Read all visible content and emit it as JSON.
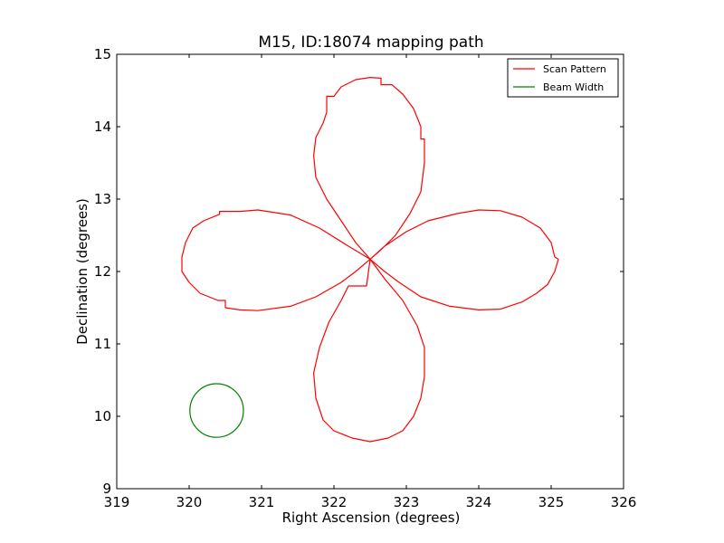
{
  "chart_data": {
    "type": "line",
    "title": "M15, ID:18074 mapping path",
    "xlabel": "Right Ascension (degrees)",
    "ylabel": "Declination (degrees)",
    "xlim": [
      319,
      326
    ],
    "ylim": [
      9,
      15
    ],
    "xticks": [
      "319",
      "320",
      "321",
      "322",
      "323",
      "324",
      "325",
      "326"
    ],
    "yticks": [
      "9",
      "10",
      "11",
      "12",
      "13",
      "14",
      "15"
    ],
    "grid": false,
    "legend_position": "top-right",
    "series": [
      {
        "name": "Scan Pattern",
        "color": "#ff0000",
        "points": [
          [
            322.5,
            12.17
          ],
          [
            322.7,
            12.35
          ],
          [
            323.0,
            12.55
          ],
          [
            323.3,
            12.7
          ],
          [
            323.7,
            12.8
          ],
          [
            324.0,
            12.85
          ],
          [
            324.3,
            12.84
          ],
          [
            324.6,
            12.75
          ],
          [
            324.85,
            12.6
          ],
          [
            325.0,
            12.4
          ],
          [
            325.05,
            12.2
          ],
          [
            325.1,
            12.17
          ],
          [
            325.05,
            12.0
          ],
          [
            324.95,
            11.82
          ],
          [
            324.8,
            11.7
          ],
          [
            324.6,
            11.58
          ],
          [
            324.3,
            11.48
          ],
          [
            324.0,
            11.47
          ],
          [
            323.6,
            11.52
          ],
          [
            323.2,
            11.65
          ],
          [
            322.9,
            11.85
          ],
          [
            322.7,
            12.0
          ],
          [
            322.5,
            12.17
          ],
          [
            322.7,
            11.9
          ],
          [
            322.95,
            11.6
          ],
          [
            323.15,
            11.25
          ],
          [
            323.25,
            10.95
          ],
          [
            323.25,
            10.55
          ],
          [
            323.2,
            10.25
          ],
          [
            323.1,
            10.0
          ],
          [
            322.95,
            9.8
          ],
          [
            322.75,
            9.7
          ],
          [
            322.5,
            9.65
          ],
          [
            322.25,
            9.7
          ],
          [
            322.0,
            9.8
          ],
          [
            321.85,
            9.95
          ],
          [
            321.75,
            10.25
          ],
          [
            321.72,
            10.6
          ],
          [
            321.8,
            10.95
          ],
          [
            321.93,
            11.3
          ],
          [
            322.1,
            11.6
          ],
          [
            322.2,
            11.8
          ],
          [
            322.45,
            11.8
          ],
          [
            322.5,
            12.17
          ],
          [
            322.2,
            12.35
          ],
          [
            321.8,
            12.6
          ],
          [
            321.4,
            12.78
          ],
          [
            320.95,
            12.85
          ],
          [
            320.7,
            12.83
          ],
          [
            320.42,
            12.83
          ],
          [
            320.42,
            12.79
          ],
          [
            320.2,
            12.7
          ],
          [
            320.05,
            12.6
          ],
          [
            319.95,
            12.4
          ],
          [
            319.9,
            12.2
          ],
          [
            319.9,
            12.0
          ],
          [
            320.0,
            11.85
          ],
          [
            320.15,
            11.7
          ],
          [
            320.4,
            11.6
          ],
          [
            320.5,
            11.6
          ],
          [
            320.5,
            11.5
          ],
          [
            320.7,
            11.47
          ],
          [
            320.95,
            11.46
          ],
          [
            321.4,
            11.52
          ],
          [
            321.75,
            11.65
          ],
          [
            322.1,
            11.85
          ],
          [
            322.3,
            12.0
          ],
          [
            322.5,
            12.17
          ],
          [
            322.3,
            12.4
          ],
          [
            322.1,
            12.7
          ],
          [
            321.9,
            13.0
          ],
          [
            321.75,
            13.3
          ],
          [
            321.72,
            13.6
          ],
          [
            321.75,
            13.85
          ],
          [
            321.85,
            14.05
          ],
          [
            321.9,
            14.2
          ],
          [
            321.9,
            14.42
          ],
          [
            322.0,
            14.42
          ],
          [
            322.1,
            14.55
          ],
          [
            322.3,
            14.65
          ],
          [
            322.5,
            14.68
          ],
          [
            322.65,
            14.67
          ],
          [
            322.65,
            14.58
          ],
          [
            322.8,
            14.58
          ],
          [
            322.95,
            14.45
          ],
          [
            323.1,
            14.25
          ],
          [
            323.2,
            14.0
          ],
          [
            323.2,
            13.83
          ],
          [
            323.25,
            13.83
          ],
          [
            323.25,
            13.5
          ],
          [
            323.2,
            13.1
          ],
          [
            323.05,
            12.8
          ],
          [
            322.85,
            12.5
          ],
          [
            322.65,
            12.3
          ],
          [
            322.5,
            12.17
          ]
        ]
      },
      {
        "name": "Beam Width",
        "color": "#008000",
        "center": [
          320.38,
          10.08
        ],
        "radius": 0.37
      }
    ]
  }
}
